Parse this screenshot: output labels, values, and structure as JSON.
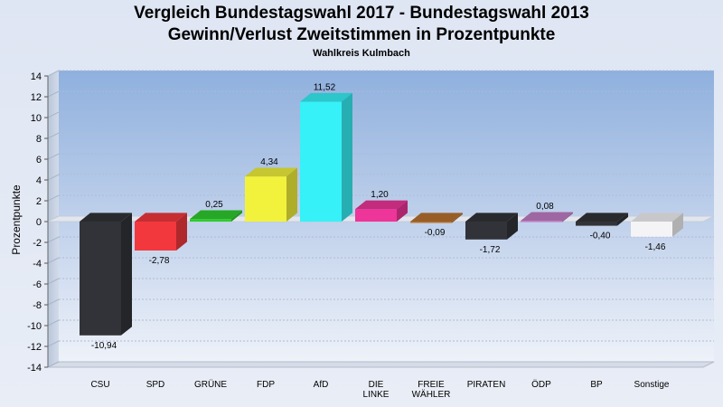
{
  "chart_data": {
    "type": "bar",
    "title": "Vergleich Bundestagswahl 2017 - Bundestagswahl 2013",
    "subtitle": "Gewinn/Verlust Zweitstimmen in Prozentpunkte",
    "subsubtitle": "Wahlkreis Kulmbach",
    "ylabel": "Prozentpunkte",
    "xlabel": "",
    "ylim": [
      -14,
      14
    ],
    "yticks": [
      14,
      12,
      10,
      8,
      6,
      4,
      2,
      0,
      -2,
      -4,
      -6,
      -8,
      -10,
      -12,
      -14
    ],
    "categories": [
      [
        "CSU"
      ],
      [
        "SPD"
      ],
      [
        "GRÜNE"
      ],
      [
        "FDP"
      ],
      [
        "AfD"
      ],
      [
        "DIE",
        "LINKE"
      ],
      [
        "FREIE",
        "WÄHLER"
      ],
      [
        "PIRATEN"
      ],
      [
        "ÖDP"
      ],
      [
        "BP"
      ],
      [
        "Sonstige"
      ]
    ],
    "values": [
      -10.94,
      -2.78,
      0.25,
      4.34,
      11.52,
      1.2,
      -0.09,
      -1.72,
      0.08,
      -0.4,
      -1.46
    ],
    "value_labels": [
      "-10,94",
      "-2,78",
      "0,25",
      "4,34",
      "11,52",
      "1,20",
      "-0,09",
      "-1,72",
      "0,08",
      "-0,40",
      "-1,46"
    ],
    "colors": [
      "#323338",
      "#f2383d",
      "#2ecc2e",
      "#f2f23c",
      "#36f1f7",
      "#ee3599",
      "#b8732f",
      "#323338",
      "#c27dc6",
      "#323338",
      "#f4f4f6"
    ],
    "grid": true,
    "legend": "none"
  }
}
